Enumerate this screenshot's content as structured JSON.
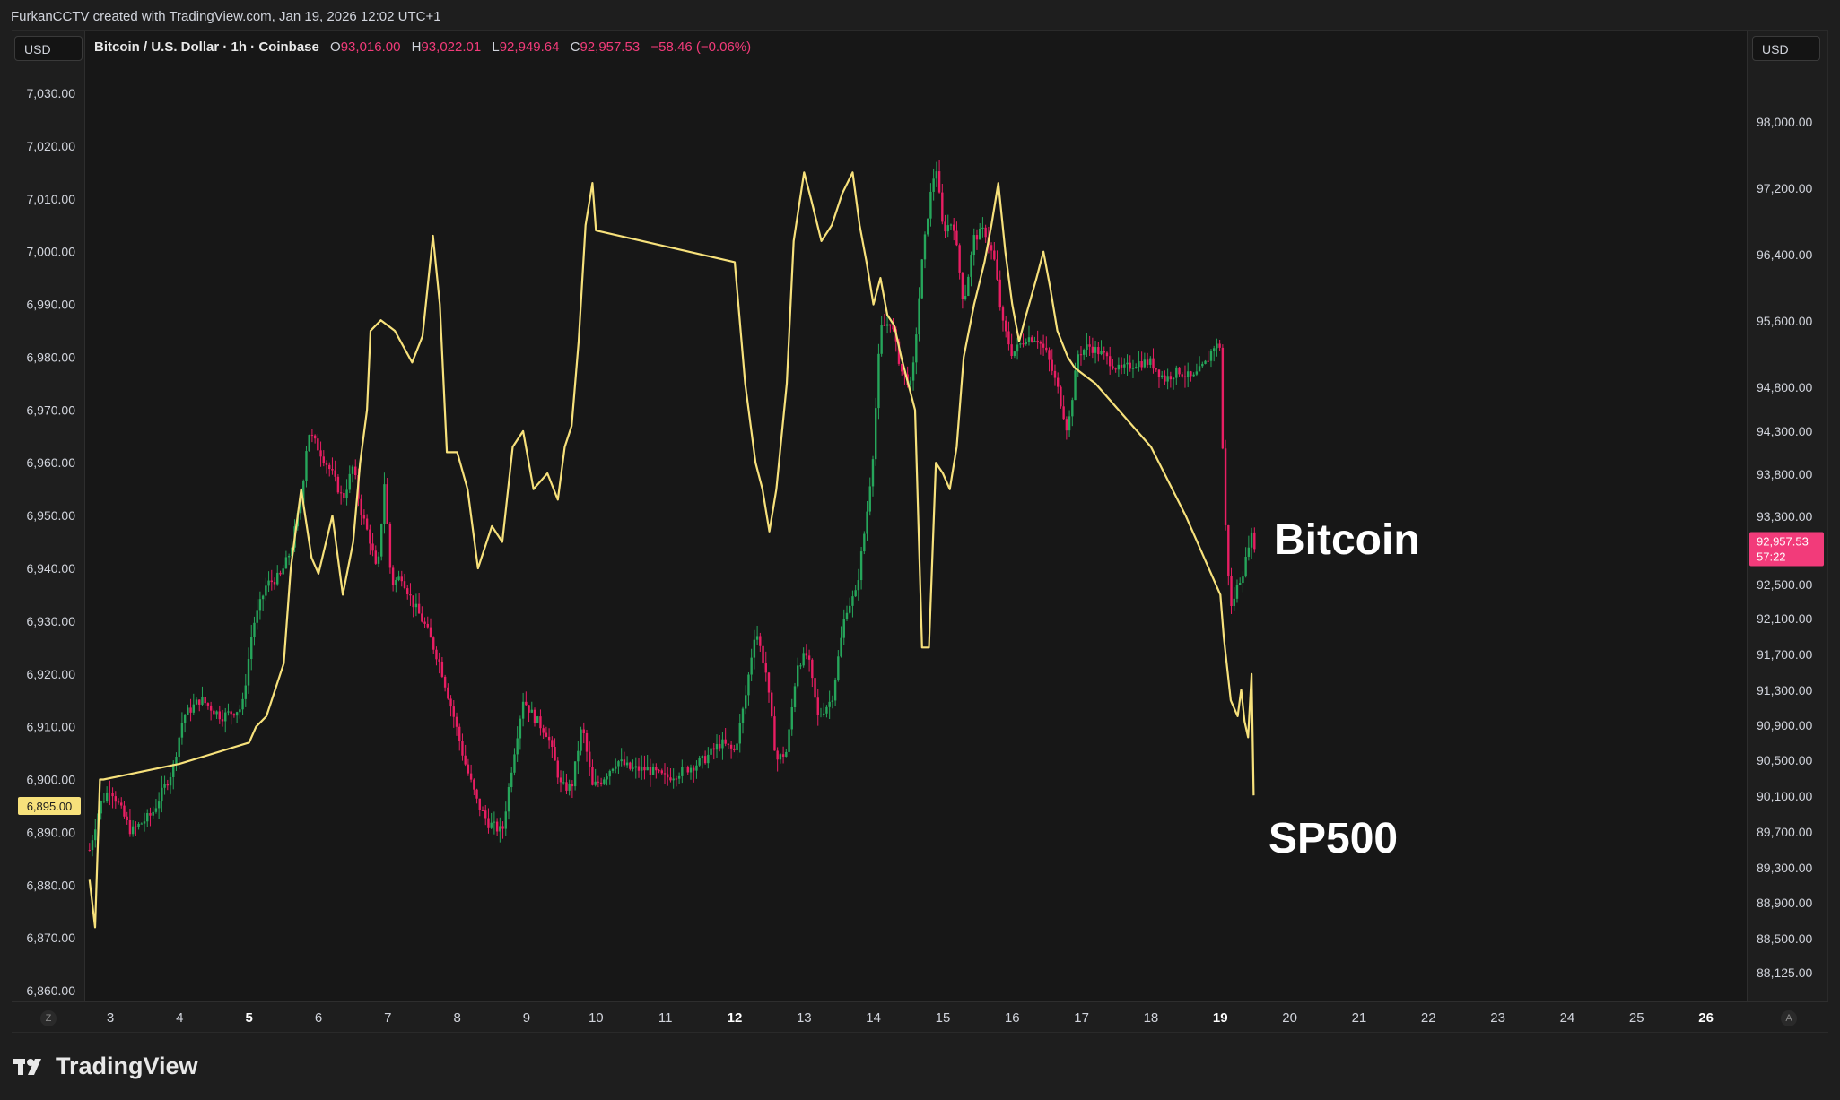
{
  "header": {
    "attribution": "FurkanCCTV created with TradingView.com, Jan 19, 2026 12:02 UTC+1"
  },
  "left_currency": "USD",
  "right_currency": "USD",
  "legend": {
    "title": "Bitcoin / U.S. Dollar · 1h · Coinbase",
    "open_label": "O",
    "open": "93,016.00",
    "high_label": "H",
    "high": "93,022.01",
    "low_label": "L",
    "low": "92,949.64",
    "close_label": "C",
    "close": "92,957.53",
    "change": "−58.46 (−0.06%)"
  },
  "corner_left": "Z",
  "corner_right": "A",
  "brand": "TradingView",
  "colors": {
    "sp500_line": "#f7e17b",
    "candle_up": "#26a65b",
    "candle_down": "#e91e63",
    "price_badge": "#f23b7a",
    "left_badge": "#f7e17b"
  },
  "chart_data": {
    "type": "line",
    "annotations": {
      "bitcoin": "Bitcoin",
      "sp500": "SP500"
    },
    "left_axis": {
      "ticks": [
        "7,030.00",
        "7,020.00",
        "7,010.00",
        "7,000.00",
        "6,990.00",
        "6,980.00",
        "6,970.00",
        "6,960.00",
        "6,950.00",
        "6,940.00",
        "6,930.00",
        "6,920.00",
        "6,910.00",
        "6,900.00",
        "6,890.00",
        "6,880.00",
        "6,870.00",
        "6,860.00"
      ],
      "range": [
        6860,
        7030
      ],
      "last_value": "6,895.00"
    },
    "right_axis": {
      "ticks": [
        "98,000.00",
        "97,200.00",
        "96,400.00",
        "95,600.00",
        "94,800.00",
        "94,300.00",
        "93,800.00",
        "93,300.00",
        "92,500.00",
        "92,100.00",
        "91,700.00",
        "91,300.00",
        "90,900.00",
        "90,500.00",
        "90,100.00",
        "89,700.00",
        "89,300.00",
        "88,900.00",
        "88,500.00",
        "88,125.00"
      ],
      "last_price": "92,957.53",
      "countdown": "57:22"
    },
    "x_ticks": [
      {
        "label": "3",
        "bold": false
      },
      {
        "label": "4",
        "bold": false
      },
      {
        "label": "5",
        "bold": true
      },
      {
        "label": "6",
        "bold": false
      },
      {
        "label": "7",
        "bold": false
      },
      {
        "label": "8",
        "bold": false
      },
      {
        "label": "9",
        "bold": false
      },
      {
        "label": "10",
        "bold": false
      },
      {
        "label": "11",
        "bold": false
      },
      {
        "label": "12",
        "bold": true
      },
      {
        "label": "13",
        "bold": false
      },
      {
        "label": "14",
        "bold": false
      },
      {
        "label": "15",
        "bold": false
      },
      {
        "label": "16",
        "bold": false
      },
      {
        "label": "17",
        "bold": false
      },
      {
        "label": "18",
        "bold": false
      },
      {
        "label": "19",
        "bold": true
      },
      {
        "label": "20",
        "bold": false
      },
      {
        "label": "21",
        "bold": false
      },
      {
        "label": "22",
        "bold": false
      },
      {
        "label": "23",
        "bold": false
      },
      {
        "label": "24",
        "bold": false
      },
      {
        "label": "25",
        "bold": false
      },
      {
        "label": "26",
        "bold": true
      }
    ],
    "series": [
      {
        "name": "SP500",
        "axis": "left",
        "points": [
          [
            2.7,
            6881
          ],
          [
            2.78,
            6872
          ],
          [
            2.85,
            6900
          ],
          [
            2.9,
            6900
          ],
          [
            4.0,
            6903
          ],
          [
            5.0,
            6907
          ],
          [
            5.1,
            6910
          ],
          [
            5.25,
            6912
          ],
          [
            5.4,
            6918
          ],
          [
            5.5,
            6922
          ],
          [
            5.6,
            6940
          ],
          [
            5.75,
            6955
          ],
          [
            5.9,
            6942
          ],
          [
            6.0,
            6939
          ],
          [
            6.2,
            6950
          ],
          [
            6.35,
            6935
          ],
          [
            6.5,
            6945
          ],
          [
            6.6,
            6960
          ],
          [
            6.7,
            6970
          ],
          [
            6.75,
            6985
          ],
          [
            6.9,
            6987
          ],
          [
            7.1,
            6985
          ],
          [
            7.35,
            6979
          ],
          [
            7.5,
            6984
          ],
          [
            7.65,
            7003
          ],
          [
            7.75,
            6990
          ],
          [
            7.85,
            6962
          ],
          [
            8.0,
            6962
          ],
          [
            8.15,
            6955
          ],
          [
            8.3,
            6940
          ],
          [
            8.5,
            6948
          ],
          [
            8.65,
            6945
          ],
          [
            8.8,
            6963
          ],
          [
            8.95,
            6966
          ],
          [
            9.1,
            6955
          ],
          [
            9.3,
            6958
          ],
          [
            9.45,
            6953
          ],
          [
            9.55,
            6963
          ],
          [
            9.65,
            6967
          ],
          [
            9.75,
            6983
          ],
          [
            9.85,
            7005
          ],
          [
            9.95,
            7013
          ],
          [
            10.0,
            7004
          ],
          [
            12.0,
            6998
          ],
          [
            12.15,
            6975
          ],
          [
            12.3,
            6960
          ],
          [
            12.4,
            6955
          ],
          [
            12.5,
            6947
          ],
          [
            12.6,
            6955
          ],
          [
            12.75,
            6975
          ],
          [
            12.85,
            7002
          ],
          [
            13.0,
            7015
          ],
          [
            13.1,
            7010
          ],
          [
            13.25,
            7002
          ],
          [
            13.4,
            7005
          ],
          [
            13.55,
            7011
          ],
          [
            13.7,
            7015
          ],
          [
            13.8,
            7005
          ],
          [
            13.9,
            6998
          ],
          [
            14.0,
            6990
          ],
          [
            14.1,
            6995
          ],
          [
            14.2,
            6988
          ],
          [
            14.3,
            6986
          ],
          [
            14.4,
            6980
          ],
          [
            14.5,
            6975
          ],
          [
            14.6,
            6970
          ],
          [
            14.7,
            6925
          ],
          [
            14.8,
            6925
          ],
          [
            14.9,
            6960
          ],
          [
            15.0,
            6958
          ],
          [
            15.1,
            6955
          ],
          [
            15.2,
            6963
          ],
          [
            15.3,
            6980
          ],
          [
            15.45,
            6990
          ],
          [
            15.6,
            6998
          ],
          [
            15.7,
            7005
          ],
          [
            15.8,
            7013
          ],
          [
            15.9,
            7000
          ],
          [
            16.0,
            6990
          ],
          [
            16.1,
            6983
          ],
          [
            16.2,
            6988
          ],
          [
            16.35,
            6995
          ],
          [
            16.45,
            7000
          ],
          [
            16.55,
            6993
          ],
          [
            16.65,
            6985
          ],
          [
            16.8,
            6980
          ],
          [
            16.9,
            6978
          ],
          [
            17.0,
            6977
          ],
          [
            17.2,
            6975
          ],
          [
            18.0,
            6963
          ],
          [
            18.5,
            6950
          ],
          [
            19.0,
            6935
          ],
          [
            19.05,
            6927
          ],
          [
            19.15,
            6915
          ],
          [
            19.25,
            6912
          ],
          [
            19.3,
            6917
          ],
          [
            19.35,
            6911
          ],
          [
            19.4,
            6908
          ],
          [
            19.45,
            6920
          ],
          [
            19.48,
            6897
          ]
        ]
      },
      {
        "name": "Bitcoin",
        "axis": "right",
        "points": [
          [
            2.7,
            89500
          ],
          [
            2.85,
            90000
          ],
          [
            3.0,
            90200
          ],
          [
            3.3,
            89700
          ],
          [
            3.6,
            89900
          ],
          [
            3.9,
            90400
          ],
          [
            4.05,
            91000
          ],
          [
            4.3,
            91200
          ],
          [
            4.6,
            91000
          ],
          [
            4.9,
            91100
          ],
          [
            5.05,
            92000
          ],
          [
            5.25,
            92500
          ],
          [
            5.45,
            92600
          ],
          [
            5.6,
            92900
          ],
          [
            5.75,
            93500
          ],
          [
            5.85,
            94300
          ],
          [
            6.0,
            94100
          ],
          [
            6.2,
            93800
          ],
          [
            6.35,
            93500
          ],
          [
            6.5,
            93900
          ],
          [
            6.6,
            93400
          ],
          [
            6.75,
            93000
          ],
          [
            6.85,
            92600
          ],
          [
            6.95,
            93700
          ],
          [
            7.05,
            92500
          ],
          [
            7.2,
            92600
          ],
          [
            7.35,
            92300
          ],
          [
            7.55,
            92000
          ],
          [
            7.75,
            91600
          ],
          [
            7.95,
            91000
          ],
          [
            8.1,
            90500
          ],
          [
            8.3,
            90000
          ],
          [
            8.45,
            89800
          ],
          [
            8.65,
            89700
          ],
          [
            8.8,
            90500
          ],
          [
            8.95,
            91200
          ],
          [
            9.1,
            91000
          ],
          [
            9.3,
            90800
          ],
          [
            9.5,
            90200
          ],
          [
            9.65,
            90200
          ],
          [
            9.8,
            90900
          ],
          [
            9.95,
            90200
          ],
          [
            10.1,
            90300
          ],
          [
            10.3,
            90500
          ],
          [
            10.5,
            90400
          ],
          [
            10.75,
            90400
          ],
          [
            11.0,
            90300
          ],
          [
            11.3,
            90400
          ],
          [
            11.55,
            90500
          ],
          [
            11.8,
            90700
          ],
          [
            12.0,
            90600
          ],
          [
            12.15,
            91200
          ],
          [
            12.3,
            92000
          ],
          [
            12.45,
            91500
          ],
          [
            12.6,
            90500
          ],
          [
            12.75,
            90600
          ],
          [
            12.9,
            91600
          ],
          [
            13.05,
            91700
          ],
          [
            13.2,
            91000
          ],
          [
            13.4,
            91200
          ],
          [
            13.6,
            92200
          ],
          [
            13.75,
            92400
          ],
          [
            13.9,
            93300
          ],
          [
            14.0,
            94100
          ],
          [
            14.1,
            95500
          ],
          [
            14.25,
            95600
          ],
          [
            14.4,
            95000
          ],
          [
            14.55,
            94800
          ],
          [
            14.7,
            96300
          ],
          [
            14.8,
            97000
          ],
          [
            14.9,
            97500
          ],
          [
            15.0,
            96700
          ],
          [
            15.15,
            96800
          ],
          [
            15.3,
            95800
          ],
          [
            15.45,
            96600
          ],
          [
            15.6,
            96700
          ],
          [
            15.75,
            96300
          ],
          [
            15.85,
            95600
          ],
          [
            16.0,
            95200
          ],
          [
            16.2,
            95400
          ],
          [
            16.35,
            95400
          ],
          [
            16.5,
            95200
          ],
          [
            16.65,
            94800
          ],
          [
            16.8,
            94300
          ],
          [
            16.95,
            95200
          ],
          [
            17.1,
            95300
          ],
          [
            17.3,
            95200
          ],
          [
            17.55,
            95000
          ],
          [
            17.8,
            95100
          ],
          [
            18.0,
            95100
          ],
          [
            18.2,
            94900
          ],
          [
            18.4,
            95000
          ],
          [
            18.6,
            94900
          ],
          [
            18.8,
            95100
          ],
          [
            18.9,
            95300
          ],
          [
            19.0,
            95300
          ],
          [
            19.05,
            93500
          ],
          [
            19.15,
            92200
          ],
          [
            19.25,
            92500
          ],
          [
            19.35,
            92700
          ],
          [
            19.43,
            93100
          ],
          [
            19.5,
            92960
          ]
        ]
      }
    ]
  }
}
